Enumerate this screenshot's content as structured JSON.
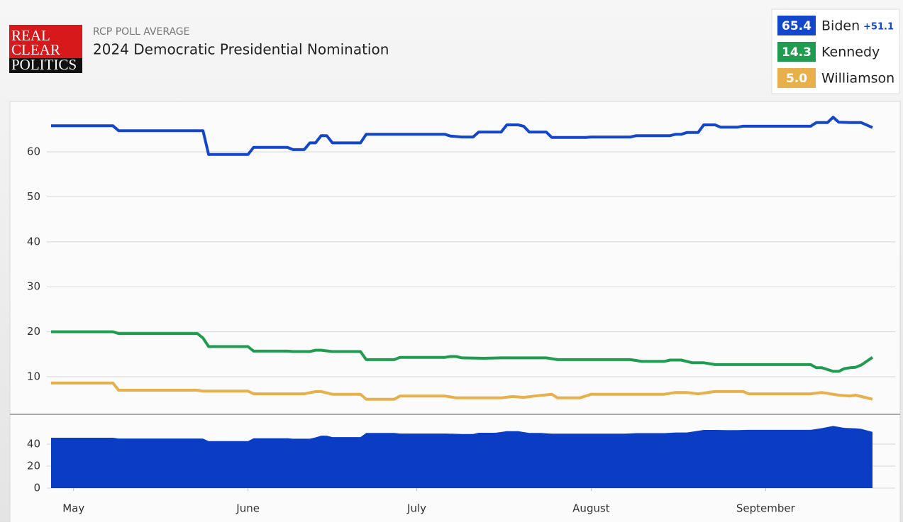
{
  "chart_data": [
    {
      "type": "line",
      "logo": [
        "REAL",
        "CLEAR",
        "POLITICS"
      ],
      "subtitle": "RCP POLL AVERAGE",
      "title": "2024 Democratic Presidential Nomination",
      "spread": {
        "value": 51.1,
        "label": "+51.1"
      },
      "xlim": [
        0,
        146
      ],
      "ylim": [
        2,
        71
      ],
      "yticks": [
        10,
        20,
        30,
        40,
        50,
        60
      ],
      "grid": true,
      "series": [
        {
          "name": "Biden",
          "color": "#1346c9",
          "latest": {
            "value": 65.4,
            "label": "65.4"
          },
          "x": [
            0,
            11,
            12,
            27,
            28,
            35,
            36,
            42,
            43,
            45,
            46,
            47,
            48,
            49,
            50,
            55,
            56,
            70,
            71,
            73,
            75,
            76,
            80,
            81,
            83,
            84,
            85,
            88,
            89,
            95,
            96,
            103,
            104,
            110,
            111,
            112,
            113,
            115,
            116,
            118,
            119,
            122,
            123,
            135,
            136,
            138,
            139,
            140,
            142,
            144,
            146
          ],
          "values": [
            65.8,
            65.8,
            64.7,
            64.7,
            59.4,
            59.4,
            61.0,
            61.0,
            60.5,
            60.5,
            62.0,
            62.0,
            63.6,
            63.6,
            62.0,
            62.0,
            63.9,
            63.9,
            63.5,
            63.3,
            63.3,
            64.4,
            64.4,
            66.0,
            66.0,
            65.7,
            64.4,
            64.4,
            63.2,
            63.2,
            63.3,
            63.3,
            63.6,
            63.6,
            63.9,
            63.9,
            64.3,
            64.3,
            66.0,
            66.0,
            65.5,
            65.5,
            65.7,
            65.7,
            66.5,
            66.5,
            67.7,
            66.6,
            66.5,
            66.5,
            65.4
          ]
        },
        {
          "name": "Kennedy",
          "color": "#1f9c4f",
          "latest": {
            "value": 14.3,
            "label": "14.3"
          },
          "x": [
            0,
            11,
            12,
            26,
            27,
            28,
            35,
            36,
            42,
            43,
            46,
            47,
            48,
            50,
            55,
            56,
            61,
            62,
            70,
            71,
            72,
            73,
            77,
            80,
            88,
            90,
            103,
            105,
            109,
            110,
            112,
            114,
            116,
            118,
            135,
            136,
            137,
            139,
            140,
            141,
            142,
            143,
            144,
            146
          ],
          "values": [
            20.0,
            20.0,
            19.6,
            19.6,
            18.6,
            16.7,
            16.7,
            15.7,
            15.7,
            15.6,
            15.6,
            15.9,
            15.9,
            15.6,
            15.6,
            13.8,
            13.8,
            14.3,
            14.3,
            14.5,
            14.5,
            14.2,
            14.1,
            14.2,
            14.2,
            13.8,
            13.8,
            13.4,
            13.4,
            13.7,
            13.7,
            13.1,
            13.1,
            12.7,
            12.7,
            12.0,
            12.0,
            11.2,
            11.2,
            11.8,
            12.0,
            12.1,
            12.6,
            14.3
          ]
        },
        {
          "name": "Williamson",
          "color": "#e8b04a",
          "latest": {
            "value": 5.0,
            "label": "5.0"
          },
          "x": [
            0,
            11,
            12,
            26,
            27,
            35,
            36,
            45,
            47,
            48,
            50,
            55,
            56,
            61,
            62,
            70,
            72,
            80,
            82,
            84,
            86,
            89,
            90,
            94,
            96,
            109,
            111,
            113,
            115,
            118,
            123,
            124,
            135,
            137,
            140,
            142,
            143,
            146
          ],
          "values": [
            8.6,
            8.6,
            7.0,
            7.0,
            6.8,
            6.8,
            6.2,
            6.2,
            6.7,
            6.7,
            6.1,
            6.1,
            5.0,
            5.0,
            5.7,
            5.7,
            5.3,
            5.3,
            5.6,
            5.4,
            5.7,
            6.1,
            5.3,
            5.3,
            6.1,
            6.1,
            6.5,
            6.5,
            6.2,
            6.7,
            6.7,
            6.2,
            6.2,
            6.5,
            5.9,
            5.7,
            5.9,
            5.0
          ]
        }
      ]
    },
    {
      "type": "area",
      "xlim": [
        0,
        146
      ],
      "xticks": [
        {
          "value": 4,
          "label": "May"
        },
        {
          "value": 35,
          "label": "June"
        },
        {
          "value": 65,
          "label": "July"
        },
        {
          "value": 96,
          "label": "August"
        },
        {
          "value": 127,
          "label": "September"
        }
      ],
      "ylim": [
        0,
        60
      ],
      "yticks": [
        0,
        20,
        40
      ],
      "grid": true,
      "series": [
        {
          "color": "#0b3dc4",
          "x": [
            0,
            11,
            12,
            26,
            27,
            28,
            35,
            36,
            42,
            43,
            46,
            47,
            48,
            49,
            50,
            55,
            56,
            61,
            62,
            70,
            73,
            75,
            76,
            79,
            81,
            83,
            85,
            87,
            89,
            102,
            104,
            109,
            111,
            113,
            116,
            118,
            120,
            122,
            124,
            135,
            137,
            139,
            141,
            143,
            144,
            146
          ],
          "values": [
            45.8,
            45.8,
            45.1,
            45.1,
            45.0,
            42.7,
            42.7,
            45.3,
            45.3,
            44.9,
            44.9,
            46.1,
            47.7,
            47.7,
            46.4,
            46.4,
            50.1,
            50.1,
            49.6,
            49.6,
            49.2,
            49.2,
            50.3,
            50.3,
            51.8,
            51.8,
            50.2,
            50.2,
            49.5,
            49.5,
            50.0,
            50.0,
            50.6,
            50.6,
            52.9,
            52.9,
            52.8,
            52.8,
            53.0,
            53.0,
            54.5,
            56.5,
            54.8,
            54.3,
            53.9,
            51.1
          ]
        }
      ]
    }
  ]
}
